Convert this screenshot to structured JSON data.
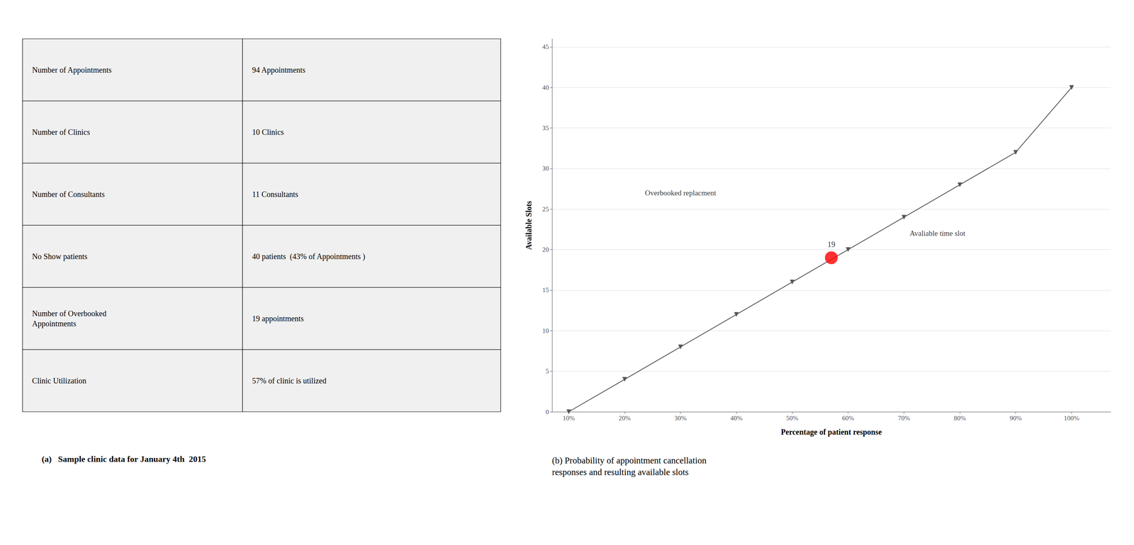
{
  "chart_data": [
    {
      "type": "table",
      "title": "(a)   Sample clinic data for January 4th  2015",
      "rows": [
        [
          "Number of Appointments",
          "94 Appointments"
        ],
        [
          "Number of Clinics",
          "10 Clinics"
        ],
        [
          "Number of Consultants",
          "11 Consultants"
        ],
        [
          "No Show patients",
          "40 patients  (43% of Appointments )"
        ],
        [
          "Number of Overbooked\nAppointments",
          "19 appointments"
        ],
        [
          "Clinic Utilization",
          "57% of clinic is utilized"
        ]
      ],
      "color": "#f0f0f0"
    },
    {
      "type": "line",
      "title": "(b) Probability of appointment cancellation\nresponses and resulting available slots",
      "x_label": "Percentage of patient response",
      "y_label": "Available Slots",
      "series": [
        {
          "type": "line",
          "color": "#555555",
          "marker": "triangle_down",
          "x": [
            0.1,
            0.2,
            0.3,
            0.4,
            0.5,
            0.6,
            0.7,
            0.8,
            0.9,
            1.0
          ],
          "values": [
            0,
            4,
            8,
            12,
            16,
            20,
            24,
            28,
            32,
            40
          ]
        },
        {
          "type": "scatter",
          "color": "red",
          "marker": "circle",
          "data_labels": true,
          "x": [
            0.57
          ],
          "values": [
            19
          ]
        }
      ],
      "annotations": [
        {
          "text": "Overbooked replacment",
          "x": 0.3,
          "y": 27
        },
        {
          "text": "Avaliable time slot",
          "x": 0.76,
          "y": 22
        }
      ],
      "xlim": [
        0.07,
        1.07
      ],
      "xticks": [
        {
          "value": 0.1,
          "label": "10%"
        },
        {
          "value": 0.2,
          "label": "20%"
        },
        {
          "value": 0.3,
          "label": "30%"
        },
        {
          "value": 0.4,
          "label": "40%"
        },
        {
          "value": 0.5,
          "label": "50%"
        },
        {
          "value": 0.6,
          "label": "60%"
        },
        {
          "value": 0.7,
          "label": "70%"
        },
        {
          "value": 0.8,
          "label": "80%"
        },
        {
          "value": 0.9,
          "label": "90%"
        },
        {
          "value": 1.0,
          "label": "100%"
        }
      ],
      "ylim": [
        0,
        46
      ],
      "yticks": [
        0,
        5,
        10,
        15,
        20,
        25,
        30,
        35,
        40,
        45
      ],
      "grid": true
    }
  ]
}
